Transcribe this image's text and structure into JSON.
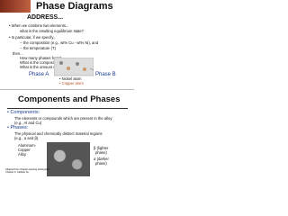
{
  "slides": [
    {
      "title": "Phase Diagrams",
      "heading": "ADDRESS...",
      "lines": [
        "• When we combine two elements...",
        "what is the resulting equilibrium state?",
        "• In particular, if we specify...",
        "-- the composition (e.g., wt% Cu - wt% Ni), and",
        "-- the temperature (T)",
        "then...",
        "How many phases form?",
        "What is the composition of each phase?",
        "What is the amount of each phase?"
      ],
      "phase_labels": [
        "Phase A",
        "Phase B"
      ],
      "legend": [
        "• Nickel atom",
        "• Copper atom"
      ]
    },
    {
      "title": "Components and Phases",
      "lines": [
        "• Components:",
        "The elements or compounds which are present in the alloy",
        "(e.g., Al and Cu)",
        "• Phases:",
        "The physical and chemically distinct material regions",
        "(e.g., α and β)."
      ],
      "image_label": [
        "Aluminum-",
        "Copper",
        "Alloy"
      ],
      "annotations": [
        "β (lighter",
        "phase)",
        "α (darker",
        "phase)"
      ],
      "caption": [
        "Adapted from chapter-opening photograph,",
        "Chapter 9, Callister 3e."
      ]
    }
  ]
}
